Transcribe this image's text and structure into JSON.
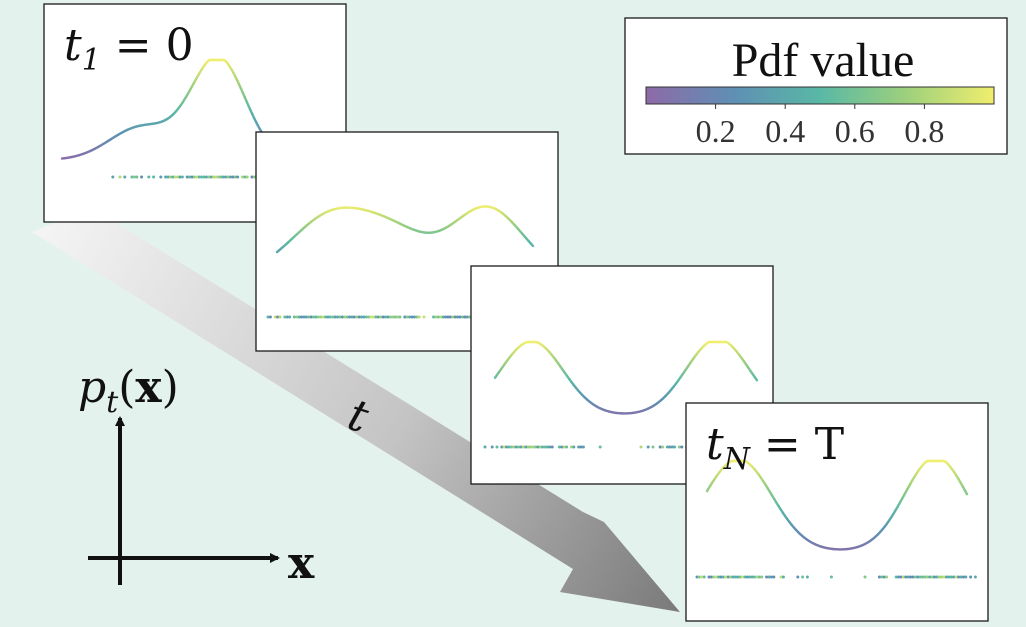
{
  "colorbar": {
    "title": "Pdf value",
    "ticks": [
      "0.2",
      "0.4",
      "0.6",
      "0.8"
    ],
    "tick_values": [
      0.2,
      0.4,
      0.6,
      0.8
    ],
    "range": [
      0,
      1
    ],
    "colormap": [
      "#8e6aa8",
      "#5f8fb4",
      "#59b8a6",
      "#9ed07c",
      "#f0ee6e"
    ]
  },
  "panels": [
    {
      "label_main": "t",
      "label_sub": "1",
      "label_rest": " = 0"
    },
    {},
    {},
    {
      "label_main": "t",
      "label_sub": "N",
      "label_rest": " = T"
    }
  ],
  "time_arrow_label": "t",
  "axes": {
    "y_label_main": "p",
    "y_label_sub": "t",
    "y_label_arg_open": "(",
    "y_label_arg": "x",
    "y_label_arg_close": ")",
    "x_label": "x"
  },
  "colors": {
    "background": "#e4f2ee",
    "arrow_light": "#f2f2f2",
    "arrow_dark": "#7a7a7a"
  }
}
